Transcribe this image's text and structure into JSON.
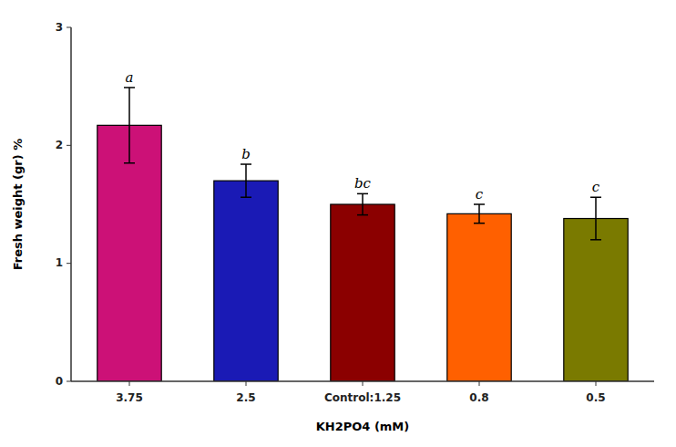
{
  "chart_data": {
    "type": "bar",
    "categories": [
      "3.75",
      "2.5",
      "Control:1.25",
      "0.8",
      "0.5"
    ],
    "values": [
      2.17,
      1.7,
      1.5,
      1.42,
      1.38
    ],
    "errors": [
      0.32,
      0.14,
      0.09,
      0.08,
      0.18
    ],
    "colors": [
      "#CC1177",
      "#1A1AB5",
      "#8B0000",
      "#FF6000",
      "#7A7A00"
    ],
    "annotations": [
      "a",
      "b",
      "bc",
      "c",
      "c"
    ],
    "xlabel": "KH2PO4 (mM)",
    "ylabel": "Fresh weight (gr) %",
    "ylim": [
      0,
      3.0
    ],
    "yticks": [
      0,
      1,
      2,
      3
    ]
  }
}
